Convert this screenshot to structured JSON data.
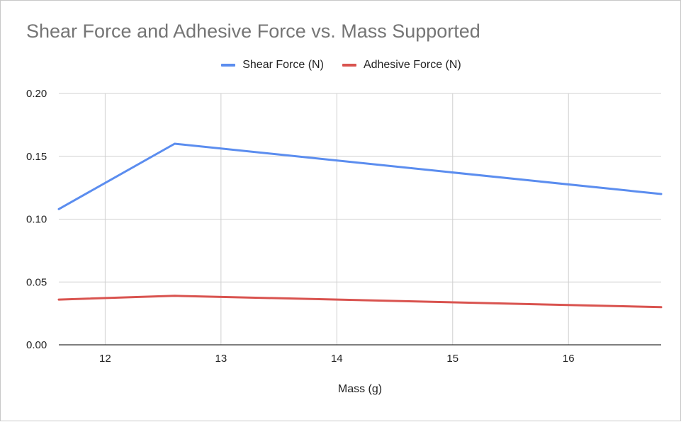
{
  "chart_data": {
    "type": "line",
    "title": "Shear Force and Adhesive Force vs. Mass Supported",
    "xlabel": "Mass (g)",
    "ylabel": "",
    "xlim": [
      11.6,
      16.8
    ],
    "ylim": [
      0,
      0.2
    ],
    "x_ticks": [
      12,
      13,
      14,
      15,
      16
    ],
    "y_ticks": [
      "0.00",
      "0.05",
      "0.10",
      "0.15",
      "0.20"
    ],
    "legend_position": "top-center",
    "grid": true,
    "series": [
      {
        "name": "Shear Force (N)",
        "color": "#5b8def",
        "x": [
          11.6,
          12.6,
          16.8
        ],
        "y": [
          0.108,
          0.16,
          0.12
        ]
      },
      {
        "name": "Adhesive Force (N)",
        "color": "#d9534f",
        "x": [
          11.6,
          12.6,
          16.8
        ],
        "y": [
          0.036,
          0.039,
          0.03
        ]
      }
    ]
  }
}
